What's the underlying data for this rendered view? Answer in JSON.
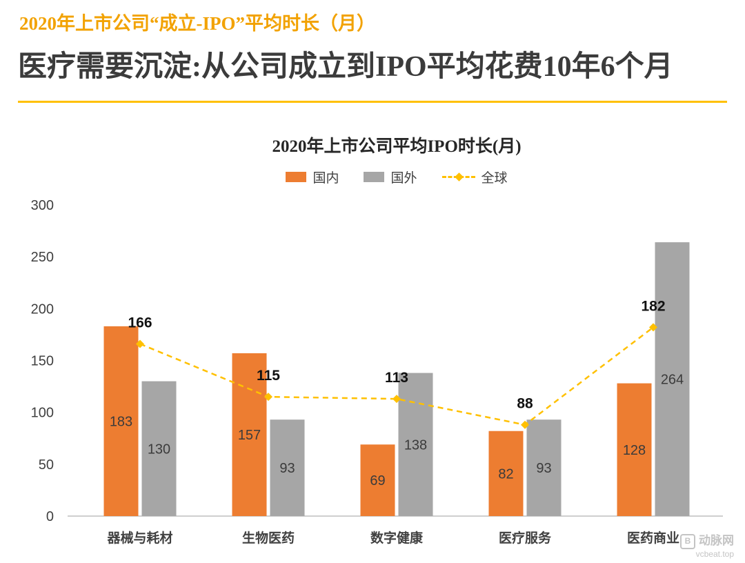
{
  "header": {
    "kicker": "2020年上市公司“成立-IPO”平均时长（月）",
    "title": "医疗需要沉淀:从公司成立到IPO平均花费10年6个月"
  },
  "colors": {
    "kicker_text": "#F2A202",
    "title_text": "#3B3B3B",
    "divider": "#FFC000",
    "domestic_bar": "#ED7D31",
    "overseas_bar": "#A6A6A6",
    "global_line": "#FFC000"
  },
  "chart_data": {
    "type": "bar",
    "title": "2020年上市公司平均IPO时长(月)",
    "categories": [
      "器械与耗材",
      "生物医药",
      "数字健康",
      "医疗服务",
      "医药商业"
    ],
    "series": [
      {
        "name": "国内",
        "type": "bar",
        "color": "#ED7D31",
        "values": [
          183,
          157,
          69,
          82,
          128
        ]
      },
      {
        "name": "国外",
        "type": "bar",
        "color": "#A6A6A6",
        "values": [
          130,
          93,
          138,
          93,
          264
        ]
      },
      {
        "name": "全球",
        "type": "line",
        "color": "#FFC000",
        "values": [
          166,
          115,
          113,
          88,
          182
        ]
      }
    ],
    "ylim": [
      0,
      300
    ],
    "ytick_step": 50,
    "grid": "off",
    "legend_position": "top"
  },
  "watermark": {
    "logo_glyph": "B",
    "brand": "动脉网",
    "domain": "vcbeat.top"
  }
}
